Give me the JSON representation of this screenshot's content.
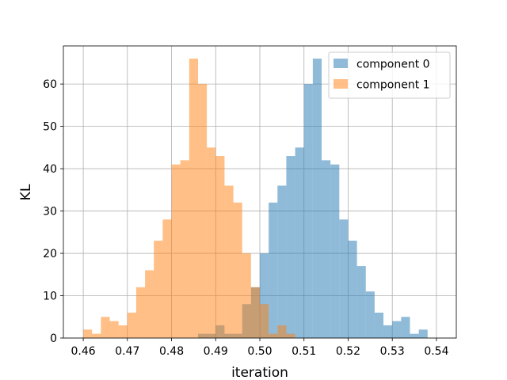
{
  "chart_data": {
    "type": "bar",
    "title": "",
    "xlabel": "iteration",
    "ylabel": "KL",
    "xlim": [
      0.4555,
      0.5445
    ],
    "ylim": [
      0,
      69
    ],
    "xticks": [
      0.46,
      0.47,
      0.48,
      0.49,
      0.5,
      0.51,
      0.52,
      0.53,
      0.54
    ],
    "xtick_labels": [
      "0.46",
      "0.47",
      "0.48",
      "0.49",
      "0.50",
      "0.51",
      "0.52",
      "0.53",
      "0.54"
    ],
    "yticks": [
      0,
      10,
      20,
      30,
      40,
      50,
      60
    ],
    "ytick_labels": [
      "0",
      "10",
      "20",
      "30",
      "40",
      "50",
      "60"
    ],
    "grid": true,
    "legend_position": "top-right",
    "bin_width": 0.002,
    "series": [
      {
        "name": "component 0",
        "color": "#1f77b4",
        "opacity": 0.5,
        "bins": [
          [
            0.486,
            1
          ],
          [
            0.488,
            1
          ],
          [
            0.49,
            3
          ],
          [
            0.492,
            1
          ],
          [
            0.494,
            1
          ],
          [
            0.496,
            8
          ],
          [
            0.498,
            12
          ],
          [
            0.5,
            20
          ],
          [
            0.502,
            32
          ],
          [
            0.504,
            36
          ],
          [
            0.506,
            43
          ],
          [
            0.508,
            45
          ],
          [
            0.51,
            60
          ],
          [
            0.512,
            66
          ],
          [
            0.514,
            42
          ],
          [
            0.516,
            41
          ],
          [
            0.518,
            28
          ],
          [
            0.52,
            23
          ],
          [
            0.522,
            17
          ],
          [
            0.524,
            11
          ],
          [
            0.526,
            6
          ],
          [
            0.528,
            3
          ],
          [
            0.53,
            4
          ],
          [
            0.532,
            5
          ],
          [
            0.534,
            1
          ],
          [
            0.536,
            2
          ]
        ]
      },
      {
        "name": "component 1",
        "color": "#ff7f0e",
        "opacity": 0.5,
        "bins": [
          [
            0.46,
            2
          ],
          [
            0.462,
            1
          ],
          [
            0.464,
            5
          ],
          [
            0.466,
            4
          ],
          [
            0.468,
            3
          ],
          [
            0.47,
            6
          ],
          [
            0.472,
            12
          ],
          [
            0.474,
            16
          ],
          [
            0.476,
            23
          ],
          [
            0.478,
            28
          ],
          [
            0.48,
            41
          ],
          [
            0.482,
            42
          ],
          [
            0.484,
            66
          ],
          [
            0.486,
            60
          ],
          [
            0.488,
            45
          ],
          [
            0.49,
            43
          ],
          [
            0.492,
            36
          ],
          [
            0.494,
            32
          ],
          [
            0.496,
            20
          ],
          [
            0.498,
            12
          ],
          [
            0.5,
            8
          ],
          [
            0.502,
            1
          ],
          [
            0.504,
            3
          ],
          [
            0.506,
            1
          ]
        ]
      }
    ]
  }
}
